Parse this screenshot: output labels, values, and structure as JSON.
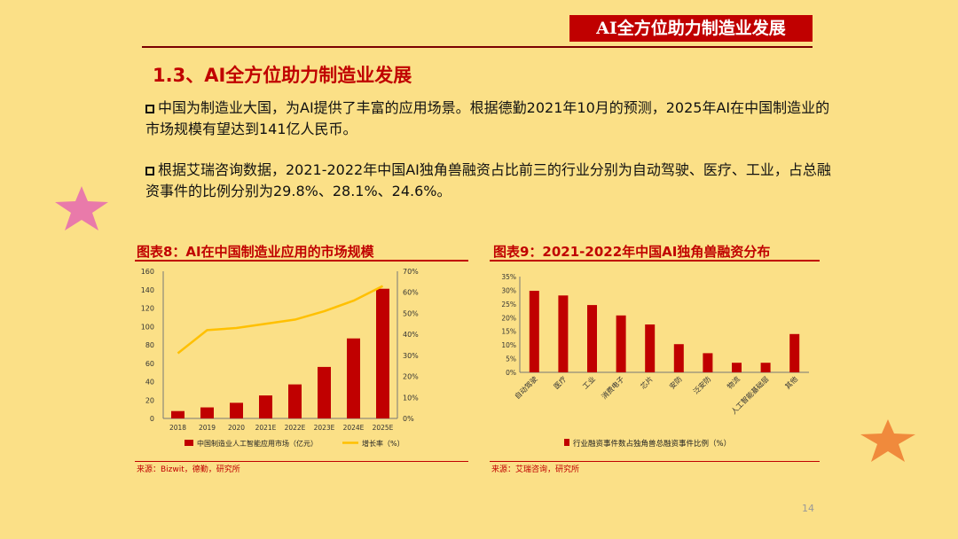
{
  "header": {
    "banner": "AI全方位助力制造业发展"
  },
  "section": {
    "title": "1.3、AI全方位助力制造业发展"
  },
  "paragraphs": [
    "中国为制造业大国，为AI提供了丰富的应用场景。根据德勤2021年10月的预测，2025年AI在中国制造业的市场规模有望达到141亿人民币。",
    "根据艾瑞咨询数据，2021-2022年中国AI独角兽融资占比前三的行业分别为自动驾驶、医疗、工业，占总融资事件的比例分别为29.8%、28.1%、24.6%。"
  ],
  "colors": {
    "background": "#fbe087",
    "accent_red": "#c00000",
    "line_yellow": "#ffc000",
    "star_pink": "#e97aaa",
    "star_orange": "#f08a3c"
  },
  "chart_data": [
    {
      "type": "bar",
      "caption": "图表8：AI在中国制造业应用的市场规模",
      "categories": [
        "2018",
        "2019",
        "2020",
        "2021E",
        "2022E",
        "2023E",
        "2024E",
        "2025E"
      ],
      "series": [
        {
          "name": "中国制造业人工智能应用市场（亿元）",
          "type": "bar",
          "axis": "left",
          "color": "#c00000",
          "values": [
            8,
            12,
            17,
            25,
            37,
            56,
            87,
            141
          ]
        },
        {
          "name": "增长率（%）",
          "type": "line",
          "axis": "right",
          "color": "#ffc000",
          "values": [
            31,
            42,
            43,
            45,
            47,
            51,
            56,
            63
          ]
        }
      ],
      "y_left": {
        "min": 0,
        "max": 160,
        "ticks": [
          "0",
          "20",
          "40",
          "60",
          "80",
          "100",
          "120",
          "140",
          "160"
        ]
      },
      "y_right": {
        "min": 0,
        "max": 70,
        "ticks": [
          "0%",
          "10%",
          "20%",
          "30%",
          "40%",
          "50%",
          "60%",
          "70%"
        ]
      },
      "source": "来源：Bizwit，德勤，研究所"
    },
    {
      "type": "bar",
      "caption": "图表9：2021-2022年中国AI独角兽融资分布",
      "categories": [
        "自动驾驶",
        "医疗",
        "工业",
        "消费电子",
        "芯片",
        "安防",
        "泛安防",
        "物流",
        "人工智能基础层",
        "其他"
      ],
      "series": [
        {
          "name": "行业融资事件数占独角兽总融资事件比例（%）",
          "color": "#c00000",
          "values": [
            29.8,
            28.1,
            24.6,
            20.8,
            17.5,
            10.3,
            7.0,
            3.5,
            3.5,
            14.0
          ]
        }
      ],
      "y": {
        "min": 0,
        "max": 35,
        "ticks": [
          "0%",
          "5%",
          "10%",
          "15%",
          "20%",
          "25%",
          "30%",
          "35%"
        ]
      },
      "source": "来源：艾瑞咨询，研究所"
    }
  ],
  "page_number": "14"
}
